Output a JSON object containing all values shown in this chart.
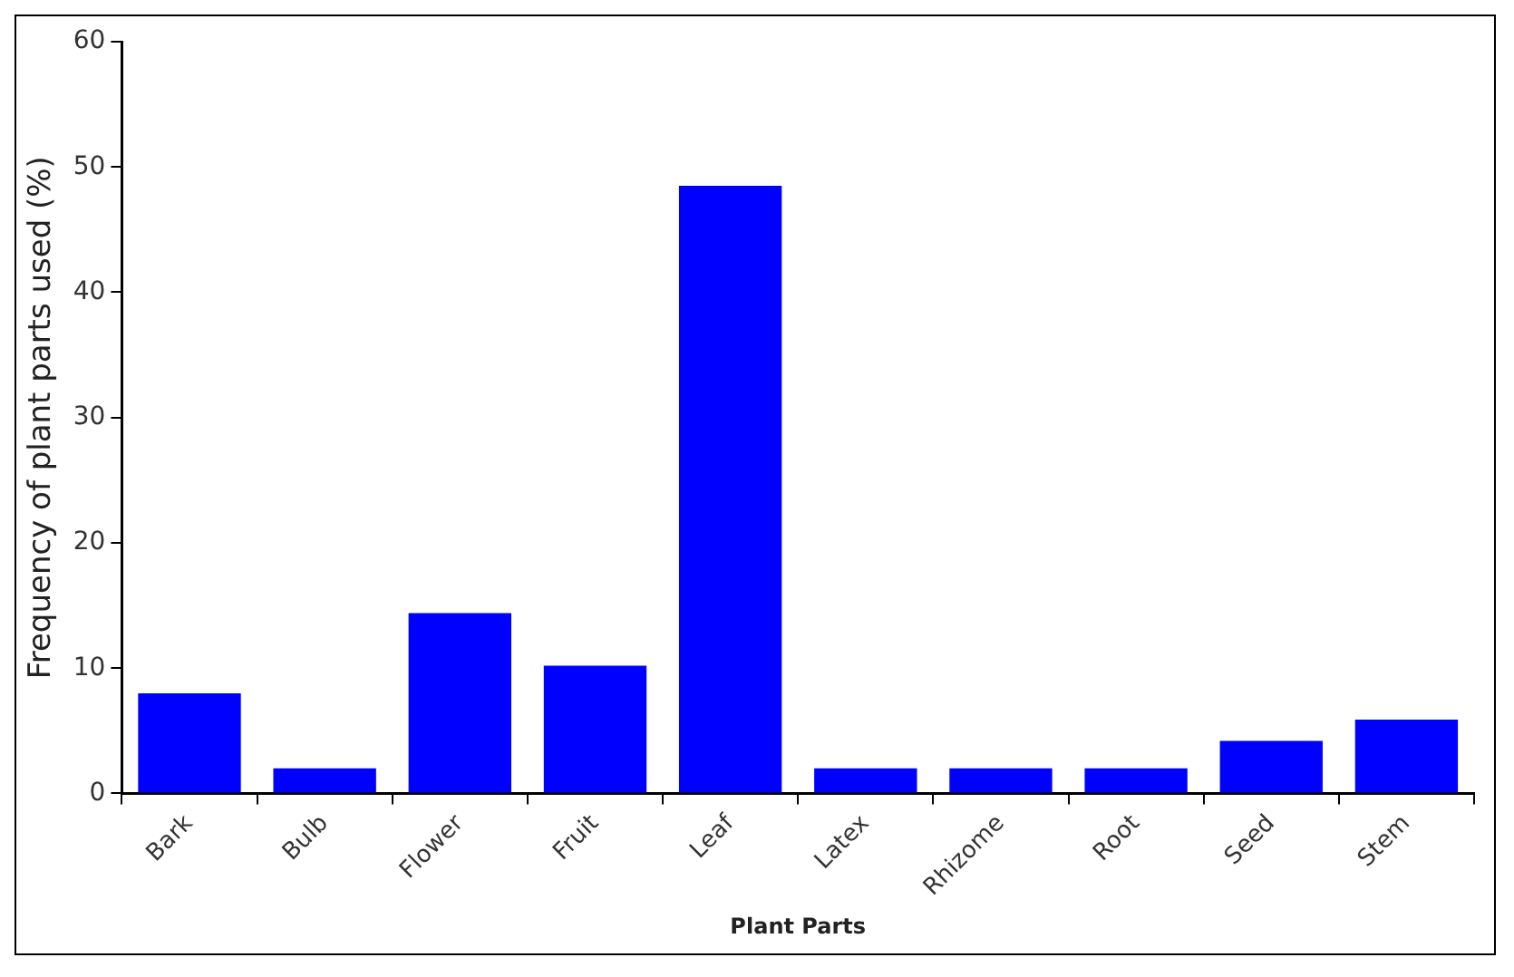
{
  "chart_data": {
    "type": "bar",
    "xlabel": "Plant Parts",
    "ylabel": "Frequency of plant parts used (%)",
    "categories": [
      "Bark",
      "Bulb",
      "Flower",
      "Fruit",
      "Leaf",
      "Latex",
      "Rhizome",
      "Root",
      "Seed",
      "Stem"
    ],
    "values": [
      8,
      2,
      14.4,
      10.2,
      48.5,
      2,
      2,
      2,
      4.2,
      5.9
    ],
    "color": "#0000ff",
    "ylim": [
      0,
      60
    ],
    "yticks": [
      0,
      10,
      20,
      30,
      40,
      50,
      60
    ],
    "grid": false,
    "legend": false
  }
}
